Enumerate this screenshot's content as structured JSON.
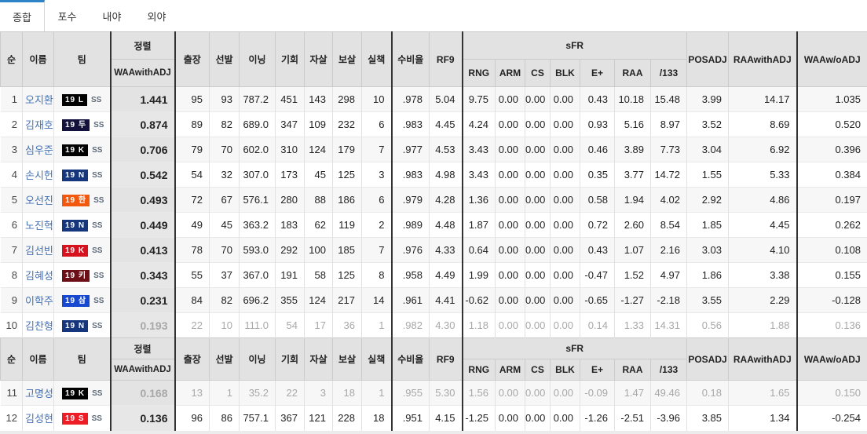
{
  "tabs": [
    {
      "label": "종합",
      "active": true
    },
    {
      "label": "포수",
      "active": false
    },
    {
      "label": "내야",
      "active": false
    },
    {
      "label": "외야",
      "active": false
    }
  ],
  "colors": {
    "tab_accent": "#2e82c6",
    "link": "#4472b8",
    "thick_border": "#333333",
    "header_bg": "#e2e2e2"
  },
  "header": {
    "rank": "순",
    "name": "이름",
    "team": "팀",
    "sort_top": "정렬",
    "sort_bottom": "WAAwithADJ",
    "g": "출장",
    "gs": "선발",
    "inn": "이닝",
    "ch": "기회",
    "po": "자살",
    "a": "보살",
    "e": "실책",
    "fpct": "수비율",
    "rf9": "RF9",
    "sfr": "sFR",
    "sfr_cols": [
      "RNG",
      "ARM",
      "CS",
      "BLK",
      "E+",
      "RAA",
      "/133"
    ],
    "posadj": "POSADJ",
    "raawithadj": "RAAwithADJ",
    "waawoadj": "WAAw/oADJ"
  },
  "players": [
    {
      "rank": "1",
      "name": "오지환",
      "team_year": "19",
      "team_code": "L",
      "team_color": "#000000",
      "pos": "SS",
      "sort": "1.441",
      "g": "95",
      "gs": "93",
      "inn": "787.2",
      "ch": "451",
      "po": "143",
      "a": "298",
      "e": "10",
      "fpct": ".978",
      "rf9": "5.04",
      "rng": "9.75",
      "arm": "0.00",
      "cs": "0.00",
      "blk": "0.00",
      "eplus": "0.43",
      "raa": "10.18",
      "per133": "15.48",
      "posadj": "3.99",
      "raawithadj": "14.17",
      "waawoadj": "1.035",
      "muted": false
    },
    {
      "rank": "2",
      "name": "김재호",
      "team_year": "19",
      "team_code": "두",
      "team_color": "#14123c",
      "pos": "SS",
      "sort": "0.874",
      "g": "89",
      "gs": "82",
      "inn": "689.0",
      "ch": "347",
      "po": "109",
      "a": "232",
      "e": "6",
      "fpct": ".983",
      "rf9": "4.45",
      "rng": "4.24",
      "arm": "0.00",
      "cs": "0.00",
      "blk": "0.00",
      "eplus": "0.93",
      "raa": "5.16",
      "per133": "8.97",
      "posadj": "3.52",
      "raawithadj": "8.69",
      "waawoadj": "0.520",
      "muted": false
    },
    {
      "rank": "3",
      "name": "심우준",
      "team_year": "19",
      "team_code": "K",
      "team_color": "#000000",
      "pos": "SS",
      "sort": "0.706",
      "g": "79",
      "gs": "70",
      "inn": "602.0",
      "ch": "310",
      "po": "124",
      "a": "179",
      "e": "7",
      "fpct": ".977",
      "rf9": "4.53",
      "rng": "3.43",
      "arm": "0.00",
      "cs": "0.00",
      "blk": "0.00",
      "eplus": "0.46",
      "raa": "3.89",
      "per133": "7.73",
      "posadj": "3.04",
      "raawithadj": "6.92",
      "waawoadj": "0.396",
      "muted": false
    },
    {
      "rank": "4",
      "name": "손시헌",
      "team_year": "19",
      "team_code": "N",
      "team_color": "#15357d",
      "pos": "SS",
      "sort": "0.542",
      "g": "54",
      "gs": "32",
      "inn": "307.0",
      "ch": "173",
      "po": "45",
      "a": "125",
      "e": "3",
      "fpct": ".983",
      "rf9": "4.98",
      "rng": "3.43",
      "arm": "0.00",
      "cs": "0.00",
      "blk": "0.00",
      "eplus": "0.35",
      "raa": "3.77",
      "per133": "14.72",
      "posadj": "1.55",
      "raawithadj": "5.33",
      "waawoadj": "0.384",
      "muted": false
    },
    {
      "rank": "5",
      "name": "오선진",
      "team_year": "19",
      "team_code": "한",
      "team_color": "#f2590f",
      "pos": "SS",
      "sort": "0.493",
      "g": "72",
      "gs": "67",
      "inn": "576.1",
      "ch": "280",
      "po": "88",
      "a": "186",
      "e": "6",
      "fpct": ".979",
      "rf9": "4.28",
      "rng": "1.36",
      "arm": "0.00",
      "cs": "0.00",
      "blk": "0.00",
      "eplus": "0.58",
      "raa": "1.94",
      "per133": "4.02",
      "posadj": "2.92",
      "raawithadj": "4.86",
      "waawoadj": "0.197",
      "muted": false
    },
    {
      "rank": "6",
      "name": "노진혁",
      "team_year": "19",
      "team_code": "N",
      "team_color": "#15357d",
      "pos": "SS",
      "sort": "0.449",
      "g": "49",
      "gs": "45",
      "inn": "363.2",
      "ch": "183",
      "po": "62",
      "a": "119",
      "e": "2",
      "fpct": ".989",
      "rf9": "4.48",
      "rng": "1.87",
      "arm": "0.00",
      "cs": "0.00",
      "blk": "0.00",
      "eplus": "0.72",
      "raa": "2.60",
      "per133": "8.54",
      "posadj": "1.85",
      "raawithadj": "4.45",
      "waawoadj": "0.262",
      "muted": false
    },
    {
      "rank": "7",
      "name": "김선빈",
      "team_year": "19",
      "team_code": "K",
      "team_color": "#d6121f",
      "pos": "SS",
      "sort": "0.413",
      "g": "78",
      "gs": "70",
      "inn": "593.0",
      "ch": "292",
      "po": "100",
      "a": "185",
      "e": "7",
      "fpct": ".976",
      "rf9": "4.33",
      "rng": "0.64",
      "arm": "0.00",
      "cs": "0.00",
      "blk": "0.00",
      "eplus": "0.43",
      "raa": "1.07",
      "per133": "2.16",
      "posadj": "3.03",
      "raawithadj": "4.10",
      "waawoadj": "0.108",
      "muted": false
    },
    {
      "rank": "8",
      "name": "김혜성",
      "team_year": "19",
      "team_code": "키",
      "team_color": "#6d0f16",
      "pos": "SS",
      "sort": "0.343",
      "g": "55",
      "gs": "37",
      "inn": "367.0",
      "ch": "191",
      "po": "58",
      "a": "125",
      "e": "8",
      "fpct": ".958",
      "rf9": "4.49",
      "rng": "1.99",
      "arm": "0.00",
      "cs": "0.00",
      "blk": "0.00",
      "eplus": "-0.47",
      "raa": "1.52",
      "per133": "4.97",
      "posadj": "1.86",
      "raawithadj": "3.38",
      "waawoadj": "0.155",
      "muted": false
    },
    {
      "rank": "9",
      "name": "이학주",
      "team_year": "19",
      "team_code": "삼",
      "team_color": "#1649cf",
      "pos": "SS",
      "sort": "0.231",
      "g": "84",
      "gs": "82",
      "inn": "696.2",
      "ch": "355",
      "po": "124",
      "a": "217",
      "e": "14",
      "fpct": ".961",
      "rf9": "4.41",
      "rng": "-0.62",
      "arm": "0.00",
      "cs": "0.00",
      "blk": "0.00",
      "eplus": "-0.65",
      "raa": "-1.27",
      "per133": "-2.18",
      "posadj": "3.55",
      "raawithadj": "2.29",
      "waawoadj": "-0.128",
      "muted": false
    },
    {
      "rank": "10",
      "name": "김찬형",
      "team_year": "19",
      "team_code": "N",
      "team_color": "#15357d",
      "pos": "SS",
      "sort": "0.193",
      "g": "22",
      "gs": "10",
      "inn": "111.0",
      "ch": "54",
      "po": "17",
      "a": "36",
      "e": "1",
      "fpct": ".982",
      "rf9": "4.30",
      "rng": "1.18",
      "arm": "0.00",
      "cs": "0.00",
      "blk": "0.00",
      "eplus": "0.14",
      "raa": "1.33",
      "per133": "14.31",
      "posadj": "0.56",
      "raawithadj": "1.88",
      "waawoadj": "0.136",
      "muted": true
    },
    {
      "rank": "11",
      "name": "고명성",
      "team_year": "19",
      "team_code": "K",
      "team_color": "#000000",
      "pos": "SS",
      "sort": "0.168",
      "g": "13",
      "gs": "1",
      "inn": "35.2",
      "ch": "22",
      "po": "3",
      "a": "18",
      "e": "1",
      "fpct": ".955",
      "rf9": "5.30",
      "rng": "1.56",
      "arm": "0.00",
      "cs": "0.00",
      "blk": "0.00",
      "eplus": "-0.09",
      "raa": "1.47",
      "per133": "49.46",
      "posadj": "0.18",
      "raawithadj": "1.65",
      "waawoadj": "0.150",
      "muted": true
    },
    {
      "rank": "12",
      "name": "김성현",
      "team_year": "19",
      "team_code": "S",
      "team_color": "#ee1c25",
      "pos": "SS",
      "sort": "0.136",
      "g": "96",
      "gs": "86",
      "inn": "757.1",
      "ch": "367",
      "po": "121",
      "a": "228",
      "e": "18",
      "fpct": ".951",
      "rf9": "4.15",
      "rng": "-1.25",
      "arm": "0.00",
      "cs": "0.00",
      "blk": "0.00",
      "eplus": "-1.26",
      "raa": "-2.51",
      "per133": "-3.96",
      "posadj": "3.85",
      "raawithadj": "1.34",
      "waawoadj": "-0.254",
      "muted": false
    }
  ],
  "sections": [
    {
      "start": 0,
      "end": 10
    },
    {
      "start": 10,
      "end": 12
    }
  ]
}
